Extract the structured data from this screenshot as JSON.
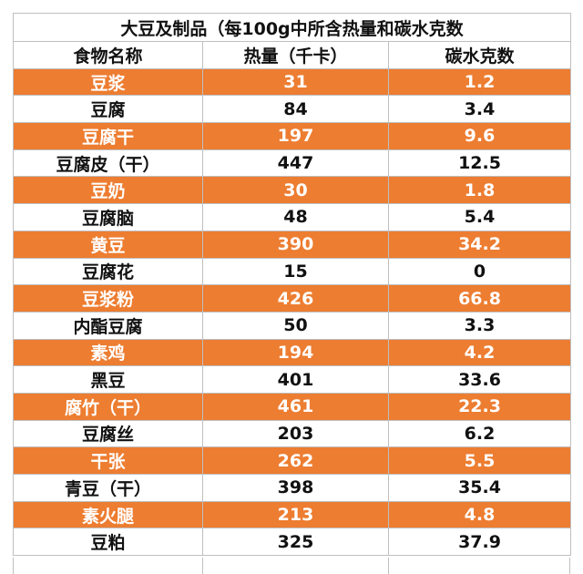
{
  "title": "大豆及制品（每100g中所含热量和碳水克数",
  "headers": {
    "name": "食物名称",
    "calories": "热量（千卡）",
    "carbs": "碳水克数"
  },
  "rows": [
    {
      "name": "豆浆",
      "calories": "31",
      "carbs": "1.2",
      "highlight": true
    },
    {
      "name": "豆腐",
      "calories": "84",
      "carbs": "3.4",
      "highlight": false
    },
    {
      "name": "豆腐干",
      "calories": "197",
      "carbs": "9.6",
      "highlight": true
    },
    {
      "name": "豆腐皮（干）",
      "calories": "447",
      "carbs": "12.5",
      "highlight": false
    },
    {
      "name": "豆奶",
      "calories": "30",
      "carbs": "1.8",
      "highlight": true
    },
    {
      "name": "豆腐脑",
      "calories": "48",
      "carbs": "5.4",
      "highlight": false
    },
    {
      "name": "黄豆",
      "calories": "390",
      "carbs": "34.2",
      "highlight": true
    },
    {
      "name": "豆腐花",
      "calories": "15",
      "carbs": "0",
      "highlight": false
    },
    {
      "name": "豆浆粉",
      "calories": "426",
      "carbs": "66.8",
      "highlight": true
    },
    {
      "name": "内酯豆腐",
      "calories": "50",
      "carbs": "3.3",
      "highlight": false
    },
    {
      "name": "素鸡",
      "calories": "194",
      "carbs": "4.2",
      "highlight": true
    },
    {
      "name": "黑豆",
      "calories": "401",
      "carbs": "33.6",
      "highlight": false
    },
    {
      "name": "腐竹（干）",
      "calories": "461",
      "carbs": "22.3",
      "highlight": true
    },
    {
      "name": "豆腐丝",
      "calories": "203",
      "carbs": "6.2",
      "highlight": false
    },
    {
      "name": "干张",
      "calories": "262",
      "carbs": "5.5",
      "highlight": true
    },
    {
      "name": "青豆（干）",
      "calories": "398",
      "carbs": "35.4",
      "highlight": false
    },
    {
      "name": "素火腿",
      "calories": "213",
      "carbs": "4.8",
      "highlight": true
    },
    {
      "name": "豆粕",
      "calories": "325",
      "carbs": "37.9",
      "highlight": false
    }
  ],
  "colors": {
    "highlight_row": "#ed7d31",
    "highlight_text": "#ffffff",
    "normal_text": "#111111",
    "grid": "#bfbfbf"
  }
}
